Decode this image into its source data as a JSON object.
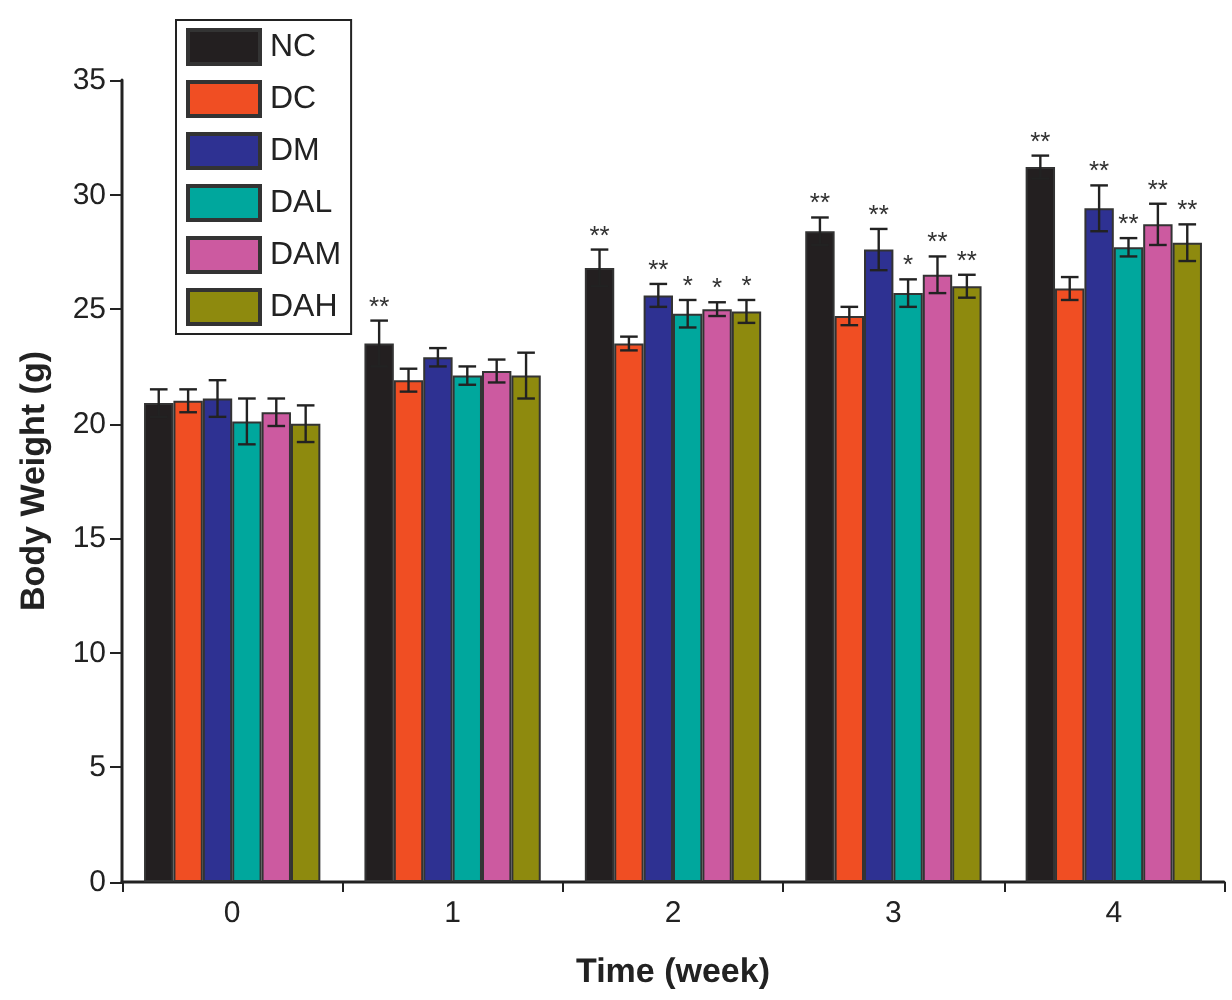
{
  "chart_data": {
    "type": "bar",
    "xlabel": "Time (week)",
    "ylabel": "Body Weight (g)",
    "categories": [
      "0",
      "1",
      "2",
      "3",
      "4"
    ],
    "series": [
      {
        "name": "NC",
        "color": "#231f20",
        "values": [
          20.9,
          23.5,
          26.8,
          28.4,
          31.2
        ],
        "errors": [
          0.6,
          1.0,
          0.8,
          0.6,
          0.5
        ],
        "value_labels": [
          null,
          "**",
          "**",
          "**",
          "**"
        ]
      },
      {
        "name": "DC",
        "color": "#f04e23",
        "values": [
          21.0,
          21.9,
          23.5,
          24.7,
          25.9
        ],
        "errors": [
          0.5,
          0.5,
          0.3,
          0.4,
          0.5
        ],
        "value_labels": [
          null,
          null,
          null,
          null,
          null
        ]
      },
      {
        "name": "DM",
        "color": "#2e3192",
        "values": [
          21.1,
          22.9,
          25.6,
          27.6,
          29.4
        ],
        "errors": [
          0.8,
          0.4,
          0.5,
          0.9,
          1.0
        ],
        "value_labels": [
          null,
          null,
          "**",
          "**",
          "**"
        ]
      },
      {
        "name": "DAL",
        "color": "#00a79d",
        "values": [
          20.1,
          22.1,
          24.8,
          25.7,
          27.7
        ],
        "errors": [
          1.0,
          0.4,
          0.6,
          0.6,
          0.4
        ],
        "value_labels": [
          null,
          null,
          "*",
          "*",
          "**"
        ]
      },
      {
        "name": "DAM",
        "color": "#cc5aa0",
        "values": [
          20.5,
          22.3,
          25.0,
          26.5,
          28.7
        ],
        "errors": [
          0.6,
          0.5,
          0.3,
          0.8,
          0.9
        ],
        "value_labels": [
          null,
          null,
          "*",
          "**",
          "**"
        ]
      },
      {
        "name": "DAH",
        "color": "#8e8a0e",
        "values": [
          20.0,
          22.1,
          24.9,
          26.0,
          27.9
        ],
        "errors": [
          0.8,
          1.0,
          0.5,
          0.5,
          0.8
        ],
        "value_labels": [
          null,
          null,
          "*",
          "**",
          "**"
        ]
      }
    ],
    "ylim": [
      0,
      35
    ],
    "yticks": [
      0,
      5,
      10,
      15,
      20,
      25,
      30,
      35
    ],
    "grid": false,
    "legend": "top left"
  }
}
